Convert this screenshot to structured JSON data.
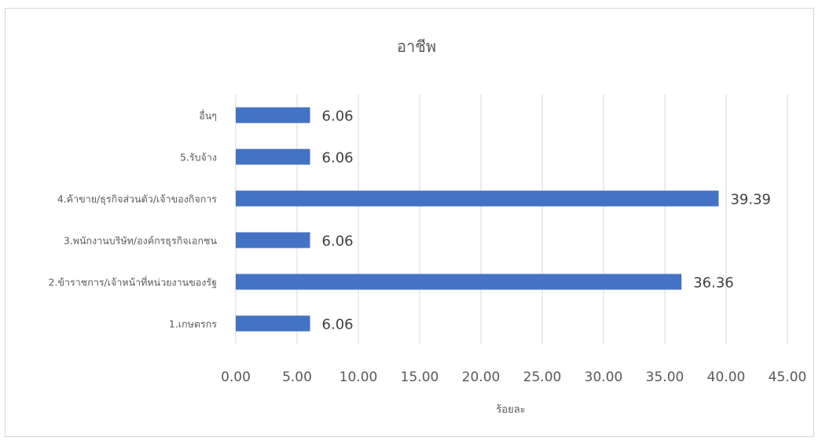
{
  "chart_data": {
    "type": "bar",
    "orientation": "horizontal",
    "title": "อาชีพ",
    "xlabel": "ร้อยละ",
    "ylabel": "",
    "categories": [
      "1.เกษตรกร",
      "2.ข้าราชการ/เจ้าหน้าที่หน่วยงานของรัฐ",
      "3.พนักงานบริษัท/องค์กรธุรกิจเอกชน",
      "4.ค้าขาย/ธุรกิจส่วนตัว/เจ้าของกิจการ",
      "5.รับจ้าง",
      "อื่นๆ"
    ],
    "values": [
      6.06,
      36.36,
      6.06,
      39.39,
      6.06,
      6.06
    ],
    "data_labels": [
      "6.06",
      "36.36",
      "6.06",
      "39.39",
      "6.06",
      "6.06"
    ],
    "xlim": [
      0,
      45
    ],
    "x_ticks": [
      0,
      5,
      10,
      15,
      20,
      25,
      30,
      35,
      40,
      45
    ],
    "x_tick_labels": [
      "0.00",
      "5.00",
      "10.00",
      "15.00",
      "20.00",
      "25.00",
      "30.00",
      "35.00",
      "40.00",
      "45.00"
    ],
    "grid": "vertical",
    "legend": "none",
    "bar_color": "#4472c4",
    "gridline_color": "#d9d9d9",
    "text_color": "#595959"
  }
}
